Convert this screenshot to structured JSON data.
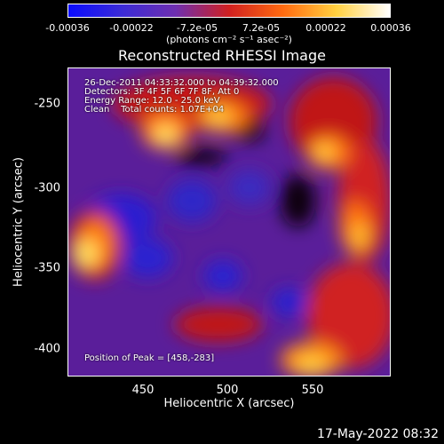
{
  "colorbar": {
    "ticks": [
      "-0.00036",
      "-0.00022",
      "-7.2e-05",
      "7.2e-05",
      "0.00022",
      "0.00036"
    ],
    "units": "(photons cm⁻² s⁻¹ asec⁻²)",
    "colors": [
      "#0a0cff",
      "#3b2bd6",
      "#6e2fb0",
      "#d02020",
      "#ff6a10",
      "#ffd040",
      "#ffffff"
    ]
  },
  "title": "Reconstructed RHESSI Image",
  "info": {
    "line1": "26-Dec-2011 04:33:32.000 to 04:39:32.000",
    "line2": "Detectors: 3F 4F 5F 6F 7F 8F, Att 0",
    "line3": "Energy Range: 12.0 - 25.0 keV",
    "line4": "Clean    Total counts: 1.07E+04",
    "peak": "Position of Peak = [458,-283]"
  },
  "axes": {
    "xlabel": "Heliocentric X (arcsec)",
    "ylabel": "Heliocentric Y (arcsec)",
    "xticks": [
      "450",
      "500",
      "550"
    ],
    "yticks": [
      "-250",
      "-300",
      "-350",
      "-400"
    ],
    "xlim": [
      405,
      595
    ],
    "ylim": [
      -419,
      -236
    ]
  },
  "footer": {
    "timestamp": "17-May-2022 08:32"
  }
}
